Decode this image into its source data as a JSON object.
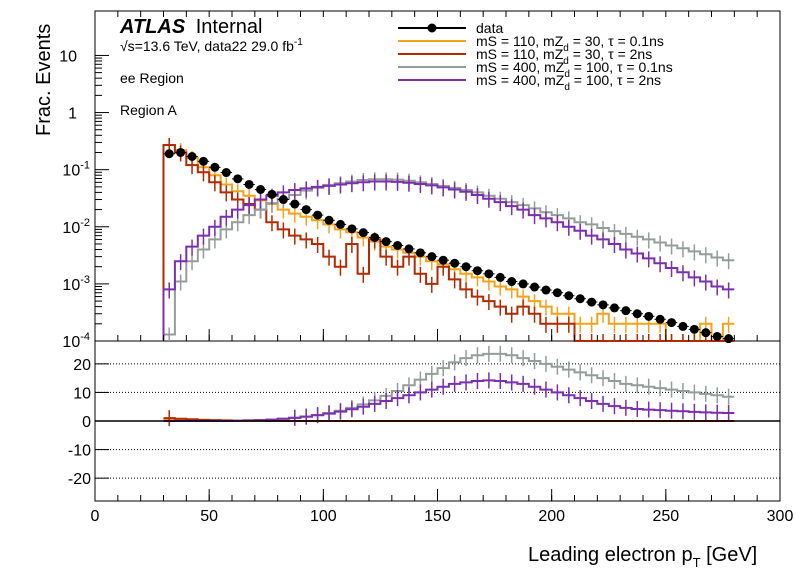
{
  "header": {
    "atlas": "ATLAS",
    "internal": "Internal",
    "sqrt": "√s",
    "energy_lumi": "=13.6 TeV, data22 29.0 fb",
    "lumi_exp": "-1",
    "region1": "ee Region",
    "region2": "Region A"
  },
  "axes": {
    "ylabel": "Frac. Events",
    "xlabel": "Leading electron p",
    "xlabel_sub": "T",
    "xlabel_unit": " [GeV]"
  },
  "legend": [
    {
      "name": "data",
      "main": "data",
      "color": "#000000",
      "marker": true
    },
    {
      "name": "mS = 110, mZd = 30, τ = 0.1ns",
      "main": "mS = 110, mZ",
      "sub": "d",
      "rest": " = 30, τ = 0.1ns",
      "color": "#f5a21b"
    },
    {
      "name": "mS = 110, mZd = 30, τ = 2ns",
      "main": "mS = 110, mZ",
      "sub": "d",
      "rest": " = 30, τ = 2ns",
      "color": "#b22a00"
    },
    {
      "name": "mS = 400, mZd = 100, τ = 0.1ns",
      "main": "mS = 400, mZ",
      "sub": "d",
      "rest": " = 100, τ = 0.1ns",
      "color": "#959d9a"
    },
    {
      "name": "mS = 400, mZd = 100, τ = 2ns",
      "main": "mS = 400, mZ",
      "sub": "d",
      "rest": " = 100, τ = 2ns",
      "color": "#7b2fae"
    }
  ],
  "chart_data": {
    "type": "line",
    "step_histogram": true,
    "bin_width": 5,
    "x_edges_start": 30,
    "xlim": [
      0,
      300
    ],
    "top_panel": {
      "ylabel": "Frac. Events",
      "yscale": "log",
      "ylim": [
        0.0001,
        60
      ],
      "yticks": [
        {
          "label": "10",
          "sup": "-4",
          "value": 0.0001
        },
        {
          "label": "10",
          "sup": "-3",
          "value": 0.001
        },
        {
          "label": "10",
          "sup": "-2",
          "value": 0.01
        },
        {
          "label": "10",
          "sup": "-1",
          "value": 0.1
        },
        {
          "label": "1",
          "sup": "",
          "value": 1
        },
        {
          "label": "10",
          "sup": "",
          "value": 10
        }
      ],
      "data_points": {
        "x": [
          32.5,
          37.5,
          42.5,
          47.5,
          52.5,
          57.5,
          62.5,
          67.5,
          72.5,
          77.5,
          82.5,
          87.5,
          92.5,
          97.5,
          102.5,
          107.5,
          112.5,
          117.5,
          122.5,
          127.5,
          132.5,
          137.5,
          142.5,
          147.5,
          152.5,
          157.5,
          162.5,
          167.5,
          172.5,
          177.5,
          182.5,
          187.5,
          192.5,
          197.5,
          202.5,
          207.5,
          212.5,
          217.5,
          222.5,
          227.5,
          232.5,
          237.5,
          242.5,
          247.5,
          252.5,
          257.5,
          262.5,
          267.5,
          272.5,
          277.5
        ],
        "y": [
          0.19,
          0.2,
          0.17,
          0.14,
          0.11,
          0.089,
          0.069,
          0.055,
          0.045,
          0.037,
          0.03,
          0.025,
          0.02,
          0.016,
          0.013,
          0.011,
          0.0092,
          0.0079,
          0.0065,
          0.0055,
          0.0047,
          0.0041,
          0.0035,
          0.003,
          0.0026,
          0.0023,
          0.002,
          0.0017,
          0.0015,
          0.0013,
          0.0011,
          0.001,
          0.00088,
          0.00078,
          0.0007,
          0.00062,
          0.00055,
          0.00048,
          0.00043,
          0.00038,
          0.00034,
          0.0003,
          0.00027,
          0.00024,
          0.00021,
          0.00018,
          0.00016,
          0.00014,
          0.00012,
          0.00011
        ]
      },
      "series": [
        {
          "name": "mS = 110, mZd = 30, τ = 0.1ns",
          "color": "#f5a21b",
          "values": [
            0.27,
            0.22,
            0.16,
            0.11,
            0.08,
            0.055,
            0.042,
            0.035,
            0.029,
            0.025,
            0.02,
            0.017,
            0.015,
            0.013,
            0.011,
            0.009,
            0.008,
            0.0065,
            0.0055,
            0.0045,
            0.004,
            0.0035,
            0.003,
            0.0025,
            0.0022,
            0.0018,
            0.0015,
            0.0013,
            0.0011,
            0.0009,
            0.0008,
            0.0006,
            0.0005,
            0.0004,
            0.0003,
            0.0003,
            0.0002,
            0.0002,
            0.0003,
            0.0002,
            0.0002,
            0.0002,
            0.0002,
            0.0002,
            0.0001,
            0.0001,
            0.0001,
            0.0002,
            0.0001,
            0.0002
          ]
        },
        {
          "name": "mS = 110, mZd = 30, τ = 2ns",
          "color": "#b22a00",
          "values": [
            0.27,
            0.2,
            0.12,
            0.09,
            0.06,
            0.04,
            0.03,
            0.025,
            0.02,
            0.012,
            0.009,
            0.007,
            0.006,
            0.005,
            0.003,
            0.002,
            0.005,
            0.0015,
            0.006,
            0.003,
            0.002,
            0.003,
            0.0015,
            0.001,
            0.002,
            0.0012,
            0.0008,
            0.0006,
            0.0005,
            0.0004,
            0.0003,
            0.0004,
            0.0003,
            0.0002,
            0.0002,
            0.0002,
            0.0001,
            0.0001,
            0.0001,
            0.0001,
            0.0001,
            0.0001,
            0.0001,
            0.0001,
            0.0001,
            0.0001,
            0.0001,
            0.0001,
            0.0001,
            0.0001
          ]
        },
        {
          "name": "mS = 400, mZd = 100, τ = 0.1ns",
          "color": "#959d9a",
          "values": [
            0.00013,
            0.0011,
            0.0025,
            0.004,
            0.006,
            0.009,
            0.012,
            0.016,
            0.02,
            0.026,
            0.031,
            0.036,
            0.043,
            0.048,
            0.054,
            0.058,
            0.062,
            0.066,
            0.068,
            0.068,
            0.067,
            0.064,
            0.06,
            0.056,
            0.052,
            0.048,
            0.044,
            0.04,
            0.035,
            0.031,
            0.027,
            0.024,
            0.021,
            0.018,
            0.016,
            0.014,
            0.012,
            0.011,
            0.0095,
            0.0084,
            0.0075,
            0.0067,
            0.006,
            0.0053,
            0.0047,
            0.0042,
            0.0037,
            0.0033,
            0.0029,
            0.0026
          ]
        },
        {
          "name": "mS = 400, mZd = 100, τ = 2ns",
          "color": "#7b2fae",
          "values": [
            0.0008,
            0.0025,
            0.0045,
            0.007,
            0.01,
            0.015,
            0.02,
            0.024,
            0.03,
            0.035,
            0.04,
            0.044,
            0.047,
            0.05,
            0.052,
            0.055,
            0.058,
            0.06,
            0.062,
            0.062,
            0.061,
            0.059,
            0.056,
            0.053,
            0.049,
            0.045,
            0.041,
            0.036,
            0.031,
            0.027,
            0.023,
            0.02,
            0.016,
            0.014,
            0.012,
            0.01,
            0.0085,
            0.007,
            0.006,
            0.005,
            0.004,
            0.0034,
            0.0028,
            0.0023,
            0.0019,
            0.0016,
            0.0013,
            0.0011,
            0.0009,
            0.0008
          ]
        }
      ]
    },
    "bottom_panel": {
      "ylim": [
        -28,
        28
      ],
      "yticks": [
        20,
        10,
        0,
        -10,
        -20
      ],
      "gridlines": [
        20,
        10,
        0,
        -10,
        -20
      ],
      "data_points": {
        "x": [
          32.5,
          277.5
        ],
        "y": [
          0,
          0
        ]
      },
      "series": [
        {
          "name": "mS = 110, mZd = 30, τ = 0.1ns",
          "color": "#f5a21b",
          "values": [
            0.5,
            0.3,
            0.2,
            0.1,
            0,
            0,
            0,
            0,
            0,
            0,
            0,
            0,
            0,
            0,
            0,
            0,
            0,
            0,
            0,
            0,
            0,
            0,
            0,
            0,
            0,
            0,
            0,
            0,
            0,
            0,
            0,
            0,
            0,
            0,
            0,
            0,
            0,
            0,
            0,
            0,
            0,
            0,
            0,
            0,
            0,
            0,
            0,
            0,
            0,
            0
          ]
        },
        {
          "name": "mS = 110, mZd = 30, τ = 2ns",
          "color": "#b22a00",
          "values": [
            1.0,
            0.8,
            0.6,
            0.4,
            0.3,
            0.2,
            0.1,
            0.1,
            0.1,
            0,
            0,
            0,
            0,
            0,
            0,
            0,
            0,
            0,
            0,
            0,
            0,
            0,
            0,
            0,
            0,
            0,
            0,
            0,
            0,
            0,
            0,
            0,
            0,
            0,
            0,
            0,
            0,
            0,
            0,
            0,
            0,
            0,
            0,
            0,
            0,
            0,
            0,
            0,
            0,
            0
          ]
        },
        {
          "name": "mS = 400, mZd = 100, τ = 0.1ns",
          "color": "#959d9a",
          "values": [
            0,
            0,
            0,
            0,
            0,
            0,
            0.1,
            0.2,
            0.3,
            0.5,
            0.8,
            1.2,
            1.6,
            2.1,
            2.8,
            3.6,
            4.6,
            5.8,
            7.2,
            8.8,
            10.5,
            12.5,
            14.5,
            16.5,
            18.5,
            20.5,
            22,
            23,
            23.5,
            23.5,
            23,
            22,
            21,
            20,
            19,
            18,
            17,
            16,
            15,
            14,
            13,
            12.5,
            12,
            11.5,
            11,
            10.5,
            10,
            9.5,
            9,
            8.5
          ]
        },
        {
          "name": "mS = 400, mZd = 100, τ = 2ns",
          "color": "#7b2fae",
          "values": [
            0,
            0,
            0,
            0,
            0,
            0,
            0.1,
            0.2,
            0.3,
            0.5,
            0.8,
            1.1,
            1.5,
            2,
            2.6,
            3.3,
            4.1,
            5,
            6,
            7,
            8,
            9,
            10,
            11,
            12,
            13,
            13.5,
            14,
            14.2,
            14,
            13.5,
            13,
            12,
            11,
            10,
            9,
            8,
            7,
            6,
            5.2,
            4.6,
            4.2,
            4,
            3.8,
            3.6,
            3.4,
            3.2,
            3,
            2.9,
            2.8
          ]
        }
      ]
    },
    "xticks": [
      0,
      50,
      100,
      150,
      200,
      250,
      300
    ]
  }
}
